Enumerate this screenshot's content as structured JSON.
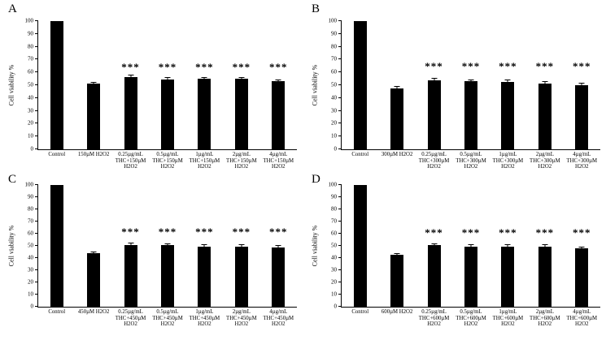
{
  "figure": {
    "background": "#ffffff",
    "bar_color": "#000000",
    "axis_color": "#000000",
    "text_color": "#000000"
  },
  "chart_data": [
    {
      "type": "bar",
      "panel": "A",
      "ylabel": "Cell viability %",
      "ylim": [
        0,
        100
      ],
      "yticks": [
        0,
        10,
        20,
        30,
        40,
        50,
        60,
        70,
        80,
        90,
        100
      ],
      "grid": false,
      "legend": "none",
      "categories": [
        [
          "Control"
        ],
        [
          "150µM H2O2"
        ],
        [
          "0.25µg/mL",
          "THC+150µM",
          "H2O2"
        ],
        [
          "0.5µg/mL",
          "THC+150µM",
          "H2O2"
        ],
        [
          "1µg/mL",
          "THC+150µM",
          "H2O2"
        ],
        [
          "2µg/mL",
          "THC+150µM",
          "H2O2"
        ],
        [
          "4µg/mL",
          "THC+150µM",
          "H2O2"
        ]
      ],
      "values": [
        100,
        51,
        56.5,
        54.5,
        55,
        55,
        53
      ],
      "errors": [
        0,
        1,
        1,
        1,
        1,
        1,
        1
      ],
      "significance": [
        "",
        "",
        "***",
        "***",
        "***",
        "***",
        "***"
      ],
      "sig_y": 65
    },
    {
      "type": "bar",
      "panel": "B",
      "ylabel": "Cell viability %",
      "ylim": [
        0,
        100
      ],
      "yticks": [
        0,
        10,
        20,
        30,
        40,
        50,
        60,
        70,
        80,
        90,
        100
      ],
      "grid": false,
      "legend": "none",
      "categories": [
        [
          "Control"
        ],
        [
          "300µM H2O2"
        ],
        [
          "0.25µg/mL",
          "THC+300µM",
          "H2O2"
        ],
        [
          "0.5µg/mL",
          "THC+300µM",
          "H2O2"
        ],
        [
          "1µg/mL",
          "THC+300µM",
          "H2O2"
        ],
        [
          "2µg/mL",
          "THC+300µM",
          "H2O2"
        ],
        [
          "4µg/mL",
          "THC+300µM",
          "H2O2"
        ]
      ],
      "values": [
        100,
        47.5,
        54,
        53,
        52.5,
        51.5,
        50
      ],
      "errors": [
        0,
        1,
        1,
        1,
        1,
        1,
        1
      ],
      "significance": [
        "",
        "",
        "***",
        "***",
        "***",
        "***",
        "***"
      ],
      "sig_y": 66
    },
    {
      "type": "bar",
      "panel": "C",
      "ylabel": "Cell viability %",
      "ylim": [
        0,
        100
      ],
      "yticks": [
        0,
        10,
        20,
        30,
        40,
        50,
        60,
        70,
        80,
        90,
        100
      ],
      "grid": false,
      "legend": "none",
      "categories": [
        [
          "Control"
        ],
        [
          "450µM H2O2"
        ],
        [
          "0.25µg/mL",
          "THC+450µM",
          "H2O2"
        ],
        [
          "0.5µg/mL",
          "THC+450µM",
          "H2O2"
        ],
        [
          "1µg/mL",
          "THC+450µM",
          "H2O2"
        ],
        [
          "2µg/mL",
          "THC+450µM",
          "H2O2"
        ],
        [
          "4µg/mL",
          "THC+450µM",
          "H2O2"
        ]
      ],
      "values": [
        100,
        44,
        51,
        50.5,
        49.5,
        49.5,
        49
      ],
      "errors": [
        0,
        1,
        1,
        1,
        1,
        1,
        1
      ],
      "significance": [
        "",
        "",
        "***",
        "***",
        "***",
        "***",
        "***"
      ],
      "sig_y": 63
    },
    {
      "type": "bar",
      "panel": "D",
      "ylabel": "Cell viability %",
      "ylim": [
        0,
        100
      ],
      "yticks": [
        0,
        10,
        20,
        30,
        40,
        50,
        60,
        70,
        80,
        90,
        100
      ],
      "grid": false,
      "legend": "none",
      "categories": [
        [
          "Control"
        ],
        [
          "600µM H2O2"
        ],
        [
          "0.25µg/mL",
          "THC+600µM",
          "H2O2"
        ],
        [
          "0.5µg/mL",
          "THC+600µM",
          "H2O2"
        ],
        [
          "1µg/mL",
          "THC+600µM",
          "H2O2"
        ],
        [
          "2µg/mL",
          "THC+600µM",
          "H2O2"
        ],
        [
          "4µg/mL",
          "THC+600µM",
          "H2O2"
        ]
      ],
      "values": [
        100,
        42.5,
        50.5,
        49.5,
        49.5,
        49.5,
        48
      ],
      "errors": [
        0,
        1,
        1,
        1,
        1,
        1,
        1
      ],
      "significance": [
        "",
        "",
        "***",
        "***",
        "***",
        "***",
        "***"
      ],
      "sig_y": 62
    }
  ]
}
